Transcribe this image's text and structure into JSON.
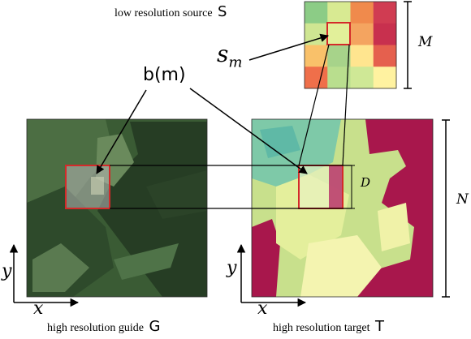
{
  "labels": {
    "source_caption": "low resolution source",
    "source_letter": "S",
    "guide_caption": "high resolution guide",
    "guide_letter": "G",
    "target_caption": "high resolution target",
    "target_letter": "T",
    "sm_base": "s",
    "sm_sub": "m",
    "bm": "b(m)",
    "M": "M",
    "N": "N",
    "D": "D",
    "x_left": "x",
    "y_left": "y",
    "x_right": "x",
    "y_right": "y"
  },
  "colors": {
    "highlight": "#d42a2a",
    "target_dark": "#a8174c",
    "guide_dark": "#243b22",
    "arrow": "#000000"
  },
  "source_grid": [
    [
      "#8ccc86",
      "#d8ea92",
      "#f08a4c",
      "#d03c52"
    ],
    [
      "#cfe692",
      "#e2f09a",
      "#f4a460",
      "#c8304e"
    ],
    [
      "#f9c16a",
      "#a7d38a",
      "#ffe58f",
      "#e5604e"
    ],
    [
      "#ef6f4a",
      "#b9de8e",
      "#cfe896",
      "#fff2a0"
    ]
  ]
}
